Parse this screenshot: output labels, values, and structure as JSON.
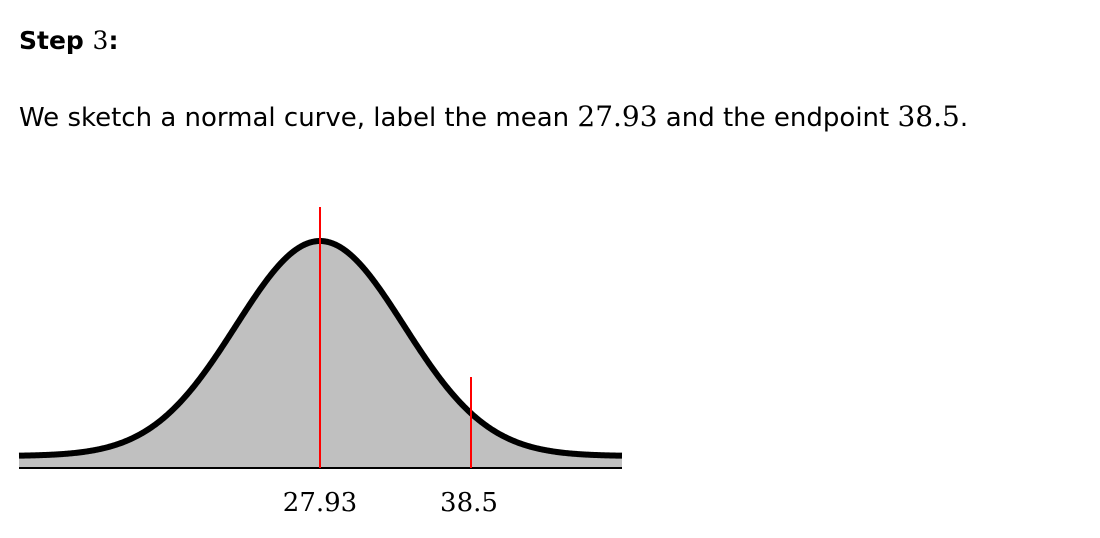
{
  "heading": {
    "word": "Step",
    "number": "3",
    "colon": ":"
  },
  "sentence": {
    "part1": "We sketch a normal curve, label the mean ",
    "mean": "27.93",
    "part2": " and the endpoint ",
    "endpoint": "38.5",
    "part3": "."
  },
  "figure": {
    "mean_value": 27.93,
    "endpoint_value": 38.5,
    "mean_label": "27.93",
    "endpoint_label": "38.5",
    "curve_color": "#000000",
    "shade_color": "#c0c0c0",
    "marker_color": "#ff0000",
    "axis_color": "#000000"
  }
}
